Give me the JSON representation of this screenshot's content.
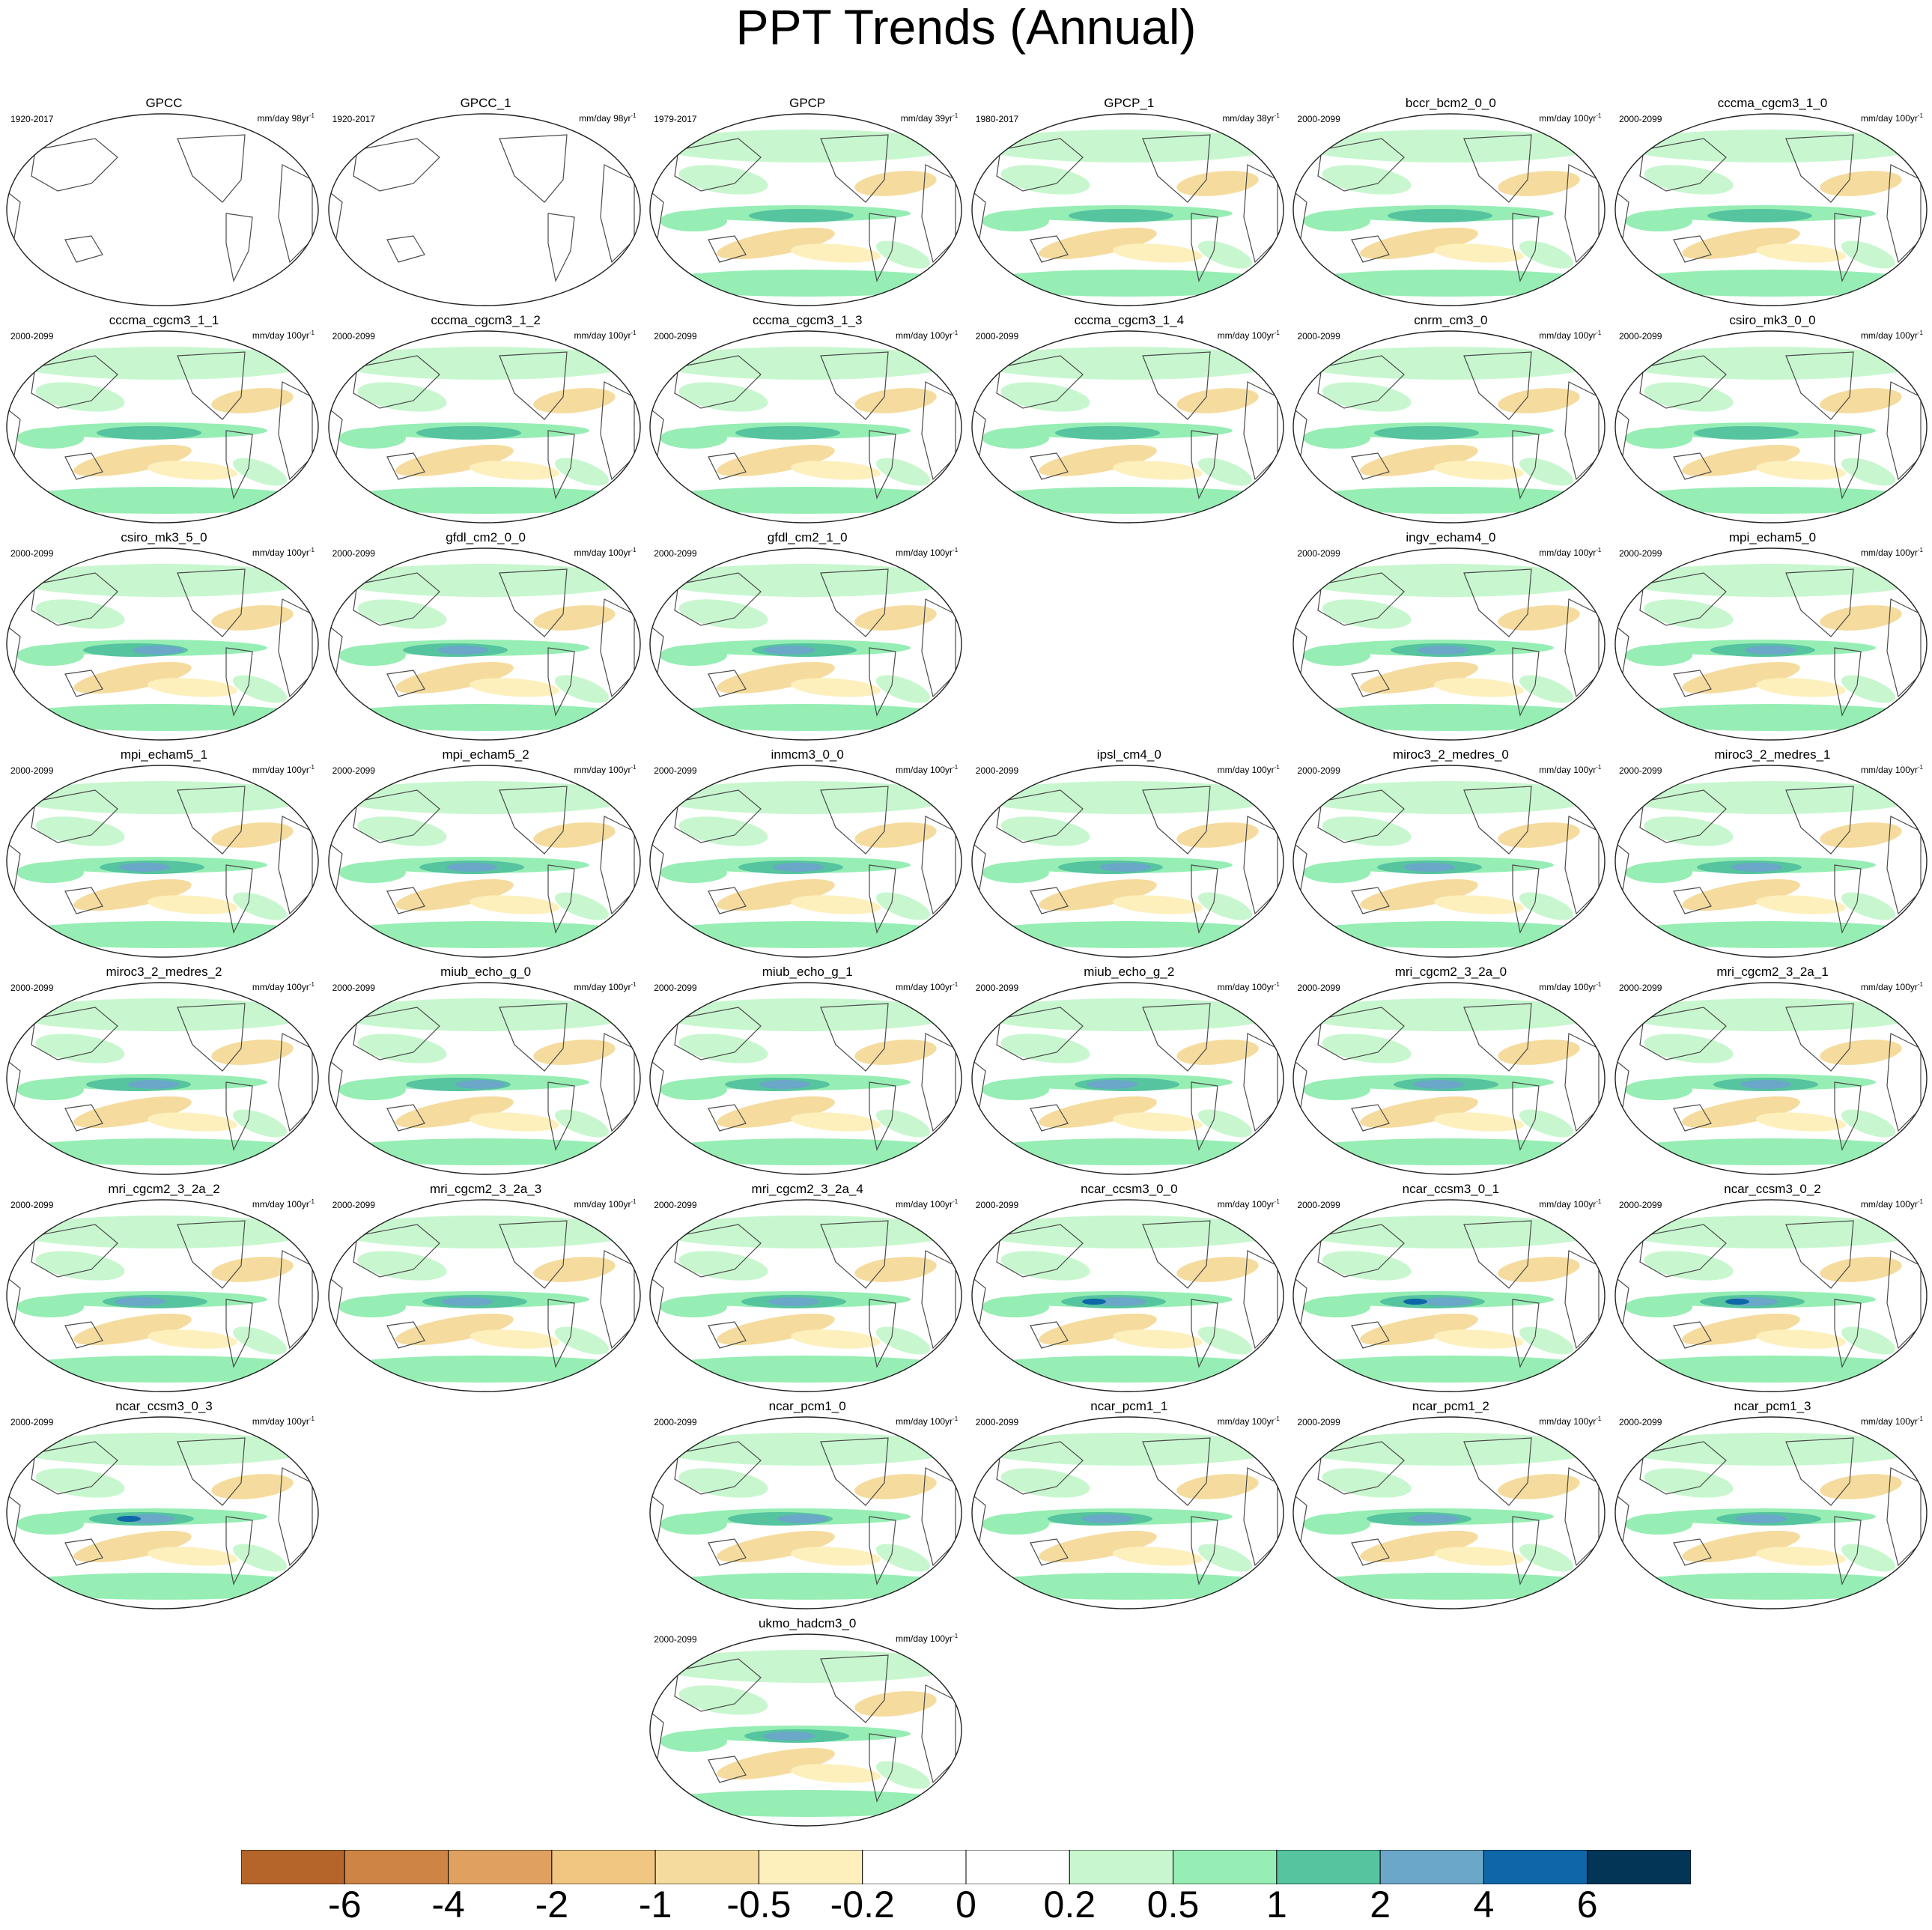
{
  "title": "PPT Trends (Annual)",
  "panels": [
    {
      "name": "GPCC",
      "period": "1920-2017",
      "units": "mm/day 98yr",
      "data": "sparse"
    },
    {
      "name": "GPCC_1",
      "period": "1920-2017",
      "units": "mm/day 98yr",
      "data": "sparse"
    },
    {
      "name": "GPCP",
      "period": "1979-2017",
      "units": "mm/day 39yr",
      "data": "full"
    },
    {
      "name": "GPCP_1",
      "period": "1980-2017",
      "units": "mm/day 38yr",
      "data": "full"
    },
    {
      "name": "bccr_bcm2_0_0",
      "period": "2000-2099",
      "units": "mm/day 100yr",
      "data": "full"
    },
    {
      "name": "cccma_cgcm3_1_0",
      "period": "2000-2099",
      "units": "mm/day 100yr",
      "data": "full"
    },
    {
      "name": "cccma_cgcm3_1_1",
      "period": "2000-2099",
      "units": "mm/day 100yr",
      "data": "full"
    },
    {
      "name": "cccma_cgcm3_1_2",
      "period": "2000-2099",
      "units": "mm/day 100yr",
      "data": "full"
    },
    {
      "name": "cccma_cgcm3_1_3",
      "period": "2000-2099",
      "units": "mm/day 100yr",
      "data": "full"
    },
    {
      "name": "cccma_cgcm3_1_4",
      "period": "2000-2099",
      "units": "mm/day 100yr",
      "data": "full"
    },
    {
      "name": "cnrm_cm3_0",
      "period": "2000-2099",
      "units": "mm/day 100yr",
      "data": "full"
    },
    {
      "name": "csiro_mk3_0_0",
      "period": "2000-2099",
      "units": "mm/day 100yr",
      "data": "full"
    },
    {
      "name": "csiro_mk3_5_0",
      "period": "2000-2099",
      "units": "mm/day 100yr",
      "data": "full"
    },
    {
      "name": "gfdl_cm2_0_0",
      "period": "2000-2099",
      "units": "mm/day 100yr",
      "data": "full"
    },
    {
      "name": "gfdl_cm2_1_0",
      "period": "2000-2099",
      "units": "mm/day 100yr",
      "data": "full"
    },
    null,
    {
      "name": "ingv_echam4_0",
      "period": "2000-2099",
      "units": "mm/day 100yr",
      "data": "full"
    },
    {
      "name": "mpi_echam5_0",
      "period": "2000-2099",
      "units": "mm/day 100yr",
      "data": "full"
    },
    {
      "name": "mpi_echam5_1",
      "period": "2000-2099",
      "units": "mm/day 100yr",
      "data": "full"
    },
    {
      "name": "mpi_echam5_2",
      "period": "2000-2099",
      "units": "mm/day 100yr",
      "data": "full"
    },
    {
      "name": "inmcm3_0_0",
      "period": "2000-2099",
      "units": "mm/day 100yr",
      "data": "full"
    },
    {
      "name": "ipsl_cm4_0",
      "period": "2000-2099",
      "units": "mm/day 100yr",
      "data": "full"
    },
    {
      "name": "miroc3_2_medres_0",
      "period": "2000-2099",
      "units": "mm/day 100yr",
      "data": "full"
    },
    {
      "name": "miroc3_2_medres_1",
      "period": "2000-2099",
      "units": "mm/day 100yr",
      "data": "full"
    },
    {
      "name": "miroc3_2_medres_2",
      "period": "2000-2099",
      "units": "mm/day 100yr",
      "data": "full"
    },
    {
      "name": "miub_echo_g_0",
      "period": "2000-2099",
      "units": "mm/day 100yr",
      "data": "full"
    },
    {
      "name": "miub_echo_g_1",
      "period": "2000-2099",
      "units": "mm/day 100yr",
      "data": "full"
    },
    {
      "name": "miub_echo_g_2",
      "period": "2000-2099",
      "units": "mm/day 100yr",
      "data": "full"
    },
    {
      "name": "mri_cgcm2_3_2a_0",
      "period": "2000-2099",
      "units": "mm/day 100yr",
      "data": "full"
    },
    {
      "name": "mri_cgcm2_3_2a_1",
      "period": "2000-2099",
      "units": "mm/day 100yr",
      "data": "full"
    },
    {
      "name": "mri_cgcm2_3_2a_2",
      "period": "2000-2099",
      "units": "mm/day 100yr",
      "data": "full"
    },
    {
      "name": "mri_cgcm2_3_2a_3",
      "period": "2000-2099",
      "units": "mm/day 100yr",
      "data": "full"
    },
    {
      "name": "mri_cgcm2_3_2a_4",
      "period": "2000-2099",
      "units": "mm/day 100yr",
      "data": "full"
    },
    {
      "name": "ncar_ccsm3_0_0",
      "period": "2000-2099",
      "units": "mm/day 100yr",
      "data": "full"
    },
    {
      "name": "ncar_ccsm3_0_1",
      "period": "2000-2099",
      "units": "mm/day 100yr",
      "data": "full"
    },
    {
      "name": "ncar_ccsm3_0_2",
      "period": "2000-2099",
      "units": "mm/day 100yr",
      "data": "full"
    },
    {
      "name": "ncar_ccsm3_0_3",
      "period": "2000-2099",
      "units": "mm/day 100yr",
      "data": "full"
    },
    null,
    {
      "name": "ncar_pcm1_0",
      "period": "2000-2099",
      "units": "mm/day 100yr",
      "data": "full"
    },
    {
      "name": "ncar_pcm1_1",
      "period": "2000-2099",
      "units": "mm/day 100yr",
      "data": "full"
    },
    {
      "name": "ncar_pcm1_2",
      "period": "2000-2099",
      "units": "mm/day 100yr",
      "data": "full"
    },
    {
      "name": "ncar_pcm1_3",
      "period": "2000-2099",
      "units": "mm/day 100yr",
      "data": "full"
    },
    null,
    null,
    {
      "name": "ukmo_hadcm3_0",
      "period": "2000-2099",
      "units": "mm/day 100yr",
      "data": "full"
    }
  ],
  "units_exponent": "-1",
  "colorbar": {
    "colors": [
      "#b5652a",
      "#cd8444",
      "#e0a160",
      "#f0c680",
      "#f5dc9e",
      "#fdf0bd",
      "#ffffff",
      "#ffffff",
      "#c8f7cf",
      "#96eeb4",
      "#55c49f",
      "#6aa7c8",
      "#0d67a8",
      "#033556"
    ],
    "labels": [
      "-6",
      "-4",
      "-2",
      "-1",
      "-0.5",
      "-0.2",
      "0",
      "0.2",
      "0.5",
      "1",
      "2",
      "4",
      "6"
    ]
  }
}
